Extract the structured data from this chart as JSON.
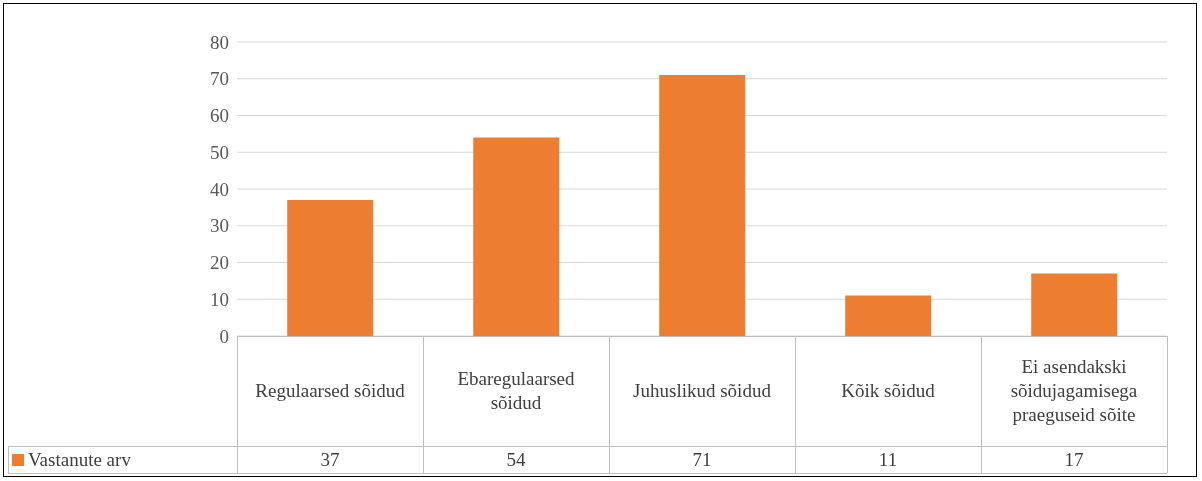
{
  "chart_data": {
    "type": "bar",
    "categories": [
      "Regulaarsed sõidud",
      "Ebaregulaarsed sõidud",
      "Juhuslikud sõidud",
      "Kõik sõidud",
      "Ei asendakski sõidujagamisega praeguseid sõite"
    ],
    "series": [
      {
        "name": "Vastanute arv",
        "color": "#ed7d31",
        "values": [
          37,
          54,
          71,
          11,
          17
        ]
      }
    ],
    "ylim": [
      0,
      80
    ],
    "yticks": [
      0,
      10,
      20,
      30,
      40,
      50,
      60,
      70,
      80
    ],
    "grid": "y",
    "legend": "bottom left",
    "data_labels": true
  }
}
